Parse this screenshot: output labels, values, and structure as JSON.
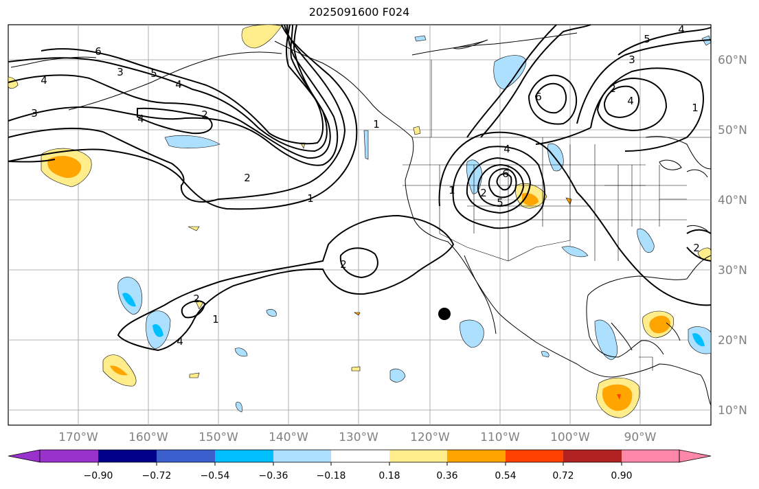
{
  "title": "2025091600 F024",
  "lon_labels": [
    "170°W",
    "160°W",
    "150°W",
    "140°W",
    "130°W",
    "120°W",
    "110°W",
    "100°W",
    "90°W"
  ],
  "lat_labels": [
    "60°N",
    "50°N",
    "40°N",
    "30°N",
    "20°N",
    "10°N"
  ],
  "colorbar": {
    "ticks": [
      "−0.90",
      "−0.72",
      "−0.54",
      "−0.36",
      "−0.18",
      "0.18",
      "0.36",
      "0.54",
      "0.72",
      "0.90"
    ],
    "colors": [
      "#9932CC",
      "#00008B",
      "#3A5FCD",
      "#00BFFF",
      "#ADDFFF",
      "#FFFFFF",
      "#FFEC8B",
      "#FFA500",
      "#FF4000",
      "#B22222",
      "#FF88AA"
    ]
  },
  "contour_labels": [
    "6",
    "3",
    "5",
    "4",
    "4",
    "3",
    "4",
    "2",
    "2",
    "1",
    "2",
    "1",
    "2",
    "1",
    "5",
    "2",
    "6",
    "4",
    "4",
    "3",
    "2",
    "4",
    "1",
    "4",
    "5",
    "6",
    "1",
    "2"
  ],
  "colors": {
    "neg_light": "#ADDFFF",
    "neg_mid": "#00BFFF",
    "pos_light": "#FFEC8B",
    "pos_mid": "#FFA500",
    "pos_high": "#FF4000",
    "grid": "#999999",
    "tick_text": "#808080"
  }
}
